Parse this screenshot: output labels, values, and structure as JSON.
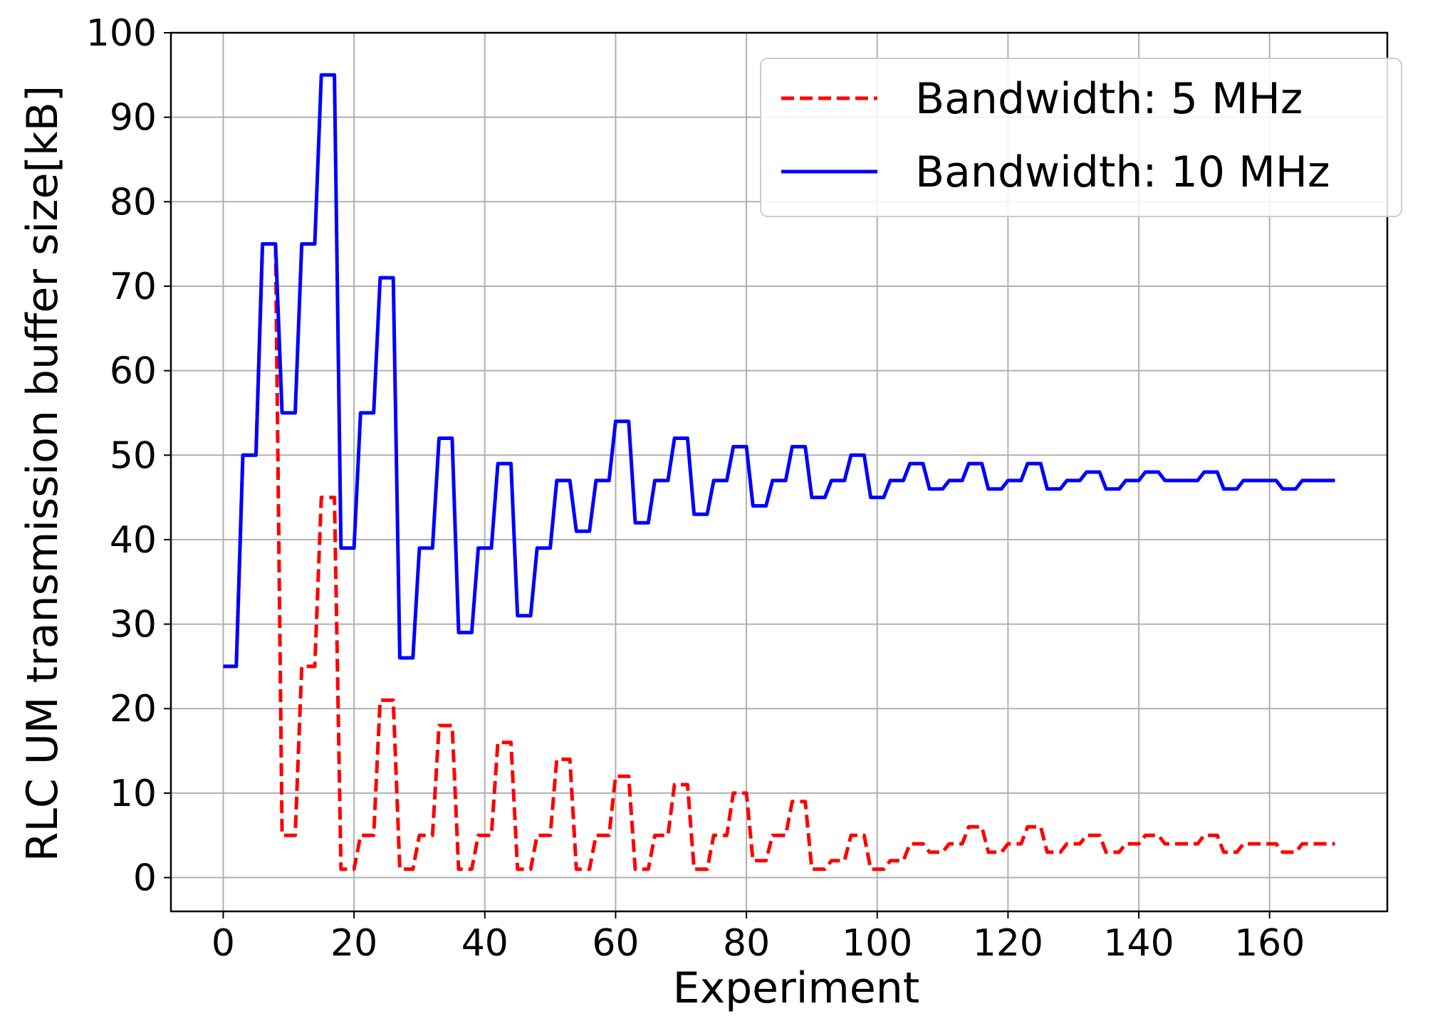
{
  "chart_data": {
    "type": "line",
    "title": "",
    "xlabel": "Experiment",
    "ylabel": "RLC UM transmission buffer size[kB]",
    "xlim": [
      -8,
      178
    ],
    "ylim": [
      -4,
      100
    ],
    "xticks": [
      0,
      20,
      40,
      60,
      80,
      100,
      120,
      140,
      160
    ],
    "yticks": [
      0,
      10,
      20,
      30,
      40,
      50,
      60,
      70,
      80,
      90,
      100
    ],
    "grid": true,
    "legend_position": "top-right",
    "series": [
      {
        "name": "Bandwidth: 5 MHz",
        "color": "#ff0000",
        "style": "dashed",
        "x": [
          0,
          2,
          3,
          5,
          6,
          8,
          9,
          11,
          12,
          14,
          15,
          17,
          18,
          20,
          21,
          23,
          24,
          26,
          27,
          29,
          30,
          32,
          33,
          35,
          36,
          38,
          39,
          41,
          42,
          44,
          45,
          47,
          48,
          50,
          51,
          53,
          54,
          56,
          57,
          59,
          60,
          62,
          63,
          65,
          66,
          68,
          69,
          71,
          72,
          74,
          75,
          77,
          78,
          80,
          81,
          83,
          84,
          86,
          87,
          89,
          90,
          92,
          93,
          95,
          96,
          98,
          99,
          101,
          102,
          104,
          105,
          107,
          108,
          110,
          111,
          113,
          114,
          116,
          117,
          119,
          120,
          122,
          123,
          125,
          126,
          128,
          129,
          131,
          132,
          134,
          135,
          137,
          138,
          140,
          141,
          143,
          144,
          146,
          147,
          149,
          150,
          152,
          153,
          155,
          156,
          158,
          159,
          161,
          162,
          164,
          165,
          167,
          168,
          170
        ],
        "y": [
          25,
          25,
          50,
          50,
          75,
          75,
          5,
          5,
          25,
          25,
          45,
          45,
          1,
          1,
          5,
          5,
          21,
          21,
          1,
          1,
          5,
          5,
          18,
          18,
          1,
          1,
          5,
          5,
          16,
          16,
          1,
          1,
          5,
          5,
          14,
          14,
          1,
          1,
          5,
          5,
          12,
          12,
          1,
          1,
          5,
          5,
          11,
          11,
          1,
          1,
          5,
          5,
          10,
          10,
          2,
          2,
          5,
          5,
          9,
          9,
          1,
          1,
          2,
          2,
          5,
          5,
          1,
          1,
          2,
          2,
          4,
          4,
          3,
          3,
          4,
          4,
          6,
          6,
          3,
          3,
          4,
          4,
          6,
          6,
          3,
          3,
          4,
          4,
          5,
          5,
          3,
          3,
          4,
          4,
          5,
          5,
          4,
          4,
          4,
          4,
          5,
          5,
          3,
          3,
          4,
          4,
          4,
          4,
          3,
          3,
          4,
          4,
          4,
          4
        ]
      },
      {
        "name": "Bandwidth: 10 MHz",
        "color": "#0000ff",
        "style": "solid",
        "x": [
          0,
          2,
          3,
          5,
          6,
          8,
          9,
          11,
          12,
          14,
          15,
          17,
          18,
          20,
          21,
          23,
          24,
          26,
          27,
          29,
          30,
          32,
          33,
          35,
          36,
          38,
          39,
          41,
          42,
          44,
          45,
          47,
          48,
          50,
          51,
          53,
          54,
          56,
          57,
          59,
          60,
          62,
          63,
          65,
          66,
          68,
          69,
          71,
          72,
          74,
          75,
          77,
          78,
          80,
          81,
          83,
          84,
          86,
          87,
          89,
          90,
          92,
          93,
          95,
          96,
          98,
          99,
          101,
          102,
          104,
          105,
          107,
          108,
          110,
          111,
          113,
          114,
          116,
          117,
          119,
          120,
          122,
          123,
          125,
          126,
          128,
          129,
          131,
          132,
          134,
          135,
          137,
          138,
          140,
          141,
          143,
          144,
          146,
          147,
          149,
          150,
          152,
          153,
          155,
          156,
          158,
          159,
          161,
          162,
          164,
          165,
          167,
          168,
          170
        ],
        "y": [
          25,
          25,
          50,
          50,
          75,
          75,
          55,
          55,
          75,
          75,
          95,
          95,
          39,
          39,
          55,
          55,
          71,
          71,
          26,
          26,
          39,
          39,
          52,
          52,
          29,
          29,
          39,
          39,
          49,
          49,
          31,
          31,
          39,
          39,
          47,
          47,
          41,
          41,
          47,
          47,
          54,
          54,
          42,
          42,
          47,
          47,
          52,
          52,
          43,
          43,
          47,
          47,
          51,
          51,
          44,
          44,
          47,
          47,
          51,
          51,
          45,
          45,
          47,
          47,
          50,
          50,
          45,
          45,
          47,
          47,
          49,
          49,
          46,
          46,
          47,
          47,
          49,
          49,
          46,
          46,
          47,
          47,
          49,
          49,
          46,
          46,
          47,
          47,
          48,
          48,
          46,
          46,
          47,
          47,
          48,
          48,
          47,
          47,
          47,
          47,
          48,
          48,
          46,
          46,
          47,
          47,
          47,
          47,
          46,
          46,
          47,
          47,
          47,
          47
        ]
      }
    ]
  }
}
